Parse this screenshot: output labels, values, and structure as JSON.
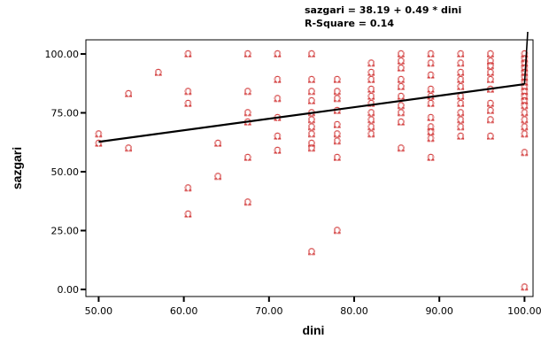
{
  "chart_data": {
    "type": "scatter",
    "xlabel": "dini",
    "ylabel": "sazgari",
    "xlim": [
      48.5,
      101.0
    ],
    "ylim": [
      -3.0,
      106.0
    ],
    "x_ticks": [
      50,
      60,
      70,
      80,
      90,
      100
    ],
    "x_tick_labels": [
      "50.00",
      "60.00",
      "70.00",
      "80.00",
      "90.00",
      "100.00"
    ],
    "y_ticks": [
      0,
      25,
      50,
      75,
      100
    ],
    "y_tick_labels": [
      "0.00",
      "25.00",
      "50.00",
      "75.00",
      "100.00"
    ],
    "grid": false,
    "legend": "none",
    "marker_symbol": "Ω",
    "marker_color": "#d23a3a",
    "equation_text": "sazgari = 38.19 + 0.49 * dini",
    "r_square_text": "R-Square = 0.14",
    "fit_line": {
      "intercept": 38.19,
      "slope": 0.49,
      "x_start": 50.0,
      "x_end": 100.0
    },
    "points": [
      [
        50,
        62
      ],
      [
        50,
        66
      ],
      [
        53.5,
        60
      ],
      [
        53.5,
        83
      ],
      [
        57,
        92
      ],
      [
        60.5,
        100
      ],
      [
        60.5,
        84
      ],
      [
        60.5,
        79
      ],
      [
        60.5,
        43
      ],
      [
        60.5,
        32
      ],
      [
        64,
        62
      ],
      [
        64,
        48
      ],
      [
        67.5,
        100
      ],
      [
        67.5,
        84
      ],
      [
        67.5,
        75
      ],
      [
        67.5,
        71
      ],
      [
        67.5,
        56
      ],
      [
        67.5,
        37
      ],
      [
        71,
        100
      ],
      [
        71,
        89
      ],
      [
        71,
        81
      ],
      [
        71,
        73
      ],
      [
        71,
        65
      ],
      [
        71,
        59
      ],
      [
        75,
        100
      ],
      [
        75,
        89
      ],
      [
        75,
        84
      ],
      [
        75,
        80
      ],
      [
        75,
        75
      ],
      [
        75,
        72
      ],
      [
        75,
        69
      ],
      [
        75,
        66
      ],
      [
        75,
        62
      ],
      [
        75,
        60
      ],
      [
        75,
        16
      ],
      [
        78,
        89
      ],
      [
        78,
        84
      ],
      [
        78,
        81
      ],
      [
        78,
        76
      ],
      [
        78,
        70
      ],
      [
        78,
        66
      ],
      [
        78,
        63
      ],
      [
        78,
        56
      ],
      [
        78,
        25
      ],
      [
        82,
        96
      ],
      [
        82,
        92
      ],
      [
        82,
        89
      ],
      [
        82,
        85
      ],
      [
        82,
        82
      ],
      [
        82,
        79
      ],
      [
        82,
        75
      ],
      [
        82,
        72
      ],
      [
        82,
        69
      ],
      [
        82,
        66
      ],
      [
        85.5,
        100
      ],
      [
        85.5,
        97
      ],
      [
        85.5,
        94
      ],
      [
        85.5,
        89
      ],
      [
        85.5,
        86
      ],
      [
        85.5,
        82
      ],
      [
        85.5,
        78
      ],
      [
        85.5,
        75
      ],
      [
        85.5,
        71
      ],
      [
        85.5,
        60
      ],
      [
        89,
        100
      ],
      [
        89,
        96
      ],
      [
        89,
        91
      ],
      [
        89,
        85
      ],
      [
        89,
        82
      ],
      [
        89,
        79
      ],
      [
        89,
        73
      ],
      [
        89,
        69
      ],
      [
        89,
        67
      ],
      [
        89,
        64
      ],
      [
        89,
        56
      ],
      [
        92.5,
        100
      ],
      [
        92.5,
        96
      ],
      [
        92.5,
        92
      ],
      [
        92.5,
        89
      ],
      [
        92.5,
        86
      ],
      [
        92.5,
        82
      ],
      [
        92.5,
        79
      ],
      [
        92.5,
        75
      ],
      [
        92.5,
        72
      ],
      [
        92.5,
        69
      ],
      [
        92.5,
        65
      ],
      [
        96,
        100
      ],
      [
        96,
        97
      ],
      [
        96,
        95
      ],
      [
        96,
        92
      ],
      [
        96,
        89
      ],
      [
        96,
        85
      ],
      [
        96,
        79
      ],
      [
        96,
        76
      ],
      [
        96,
        72
      ],
      [
        96,
        65
      ],
      [
        100,
        100
      ],
      [
        100,
        98
      ],
      [
        100,
        96
      ],
      [
        100,
        94
      ],
      [
        100,
        92
      ],
      [
        100,
        90
      ],
      [
        100,
        88
      ],
      [
        100,
        86
      ],
      [
        100,
        84
      ],
      [
        100,
        82
      ],
      [
        100,
        80
      ],
      [
        100,
        78
      ],
      [
        100,
        75
      ],
      [
        100,
        72
      ],
      [
        100,
        69
      ],
      [
        100,
        66
      ],
      [
        100,
        58
      ],
      [
        100,
        1
      ]
    ]
  }
}
